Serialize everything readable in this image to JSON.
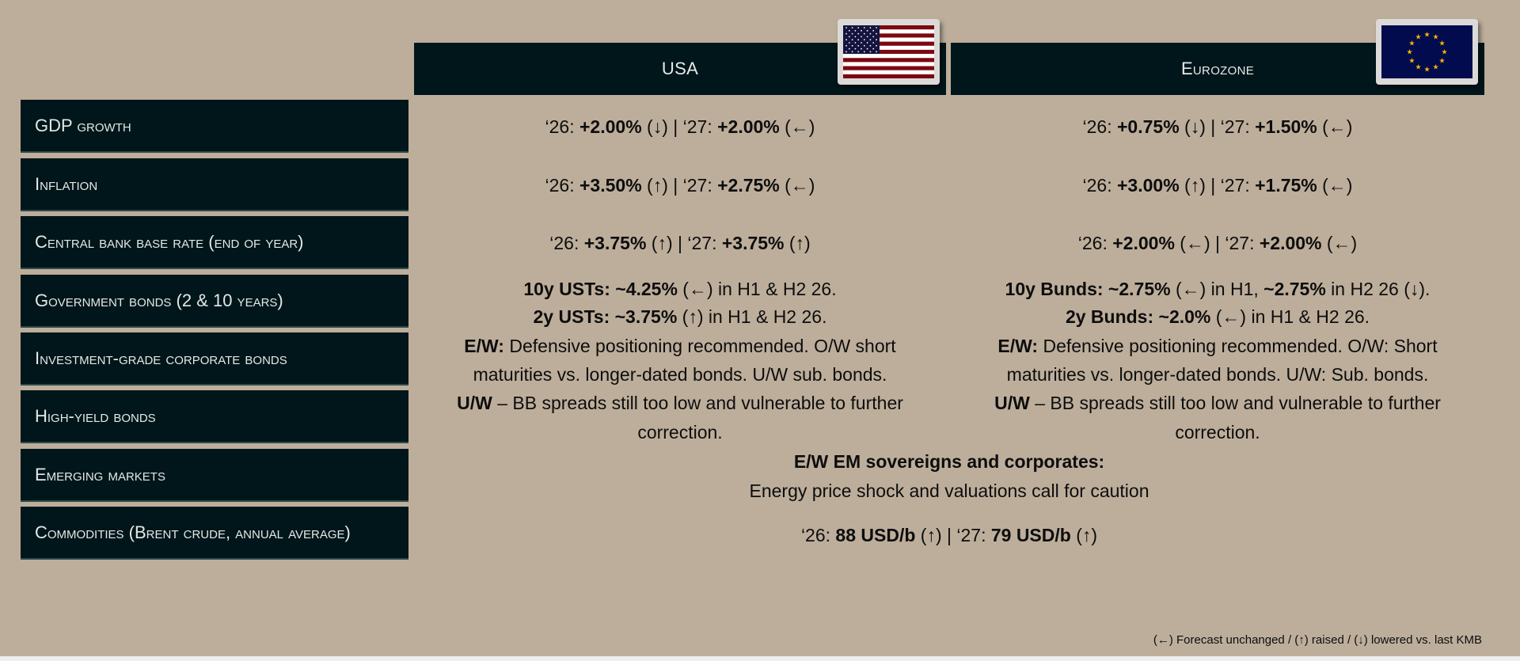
{
  "header": {
    "usa": "USA",
    "eurozone": "Eurozone"
  },
  "flags": {
    "usa": "us-flag-icon",
    "eurozone": "eu-flag-icon"
  },
  "colors": {
    "background": "#bdae9b",
    "panel": "#01161a",
    "panel_text": "#e2e9e7"
  },
  "rows": [
    {
      "label": "GDP growth"
    },
    {
      "label": "Inflation"
    },
    {
      "label": "Central bank base rate (end of year)"
    },
    {
      "label": "Government bonds (2 & 10 years)"
    },
    {
      "label": "Investment-grade corporate bonds"
    },
    {
      "label": "High-yield bonds"
    },
    {
      "label": "Emerging markets"
    },
    {
      "label": "Commodities (Brent crude, annual average)"
    }
  ],
  "usa": [
    [
      {
        "t": "‘26: "
      },
      {
        "t": "+2.00%",
        "b": 1
      },
      {
        "t": " (↓) | ‘27: "
      },
      {
        "t": "+2.00%",
        "b": 1
      },
      {
        "t": " (←)"
      }
    ],
    [
      {
        "t": "‘26: "
      },
      {
        "t": "+3.50%",
        "b": 1
      },
      {
        "t": " (↑) | ‘27: "
      },
      {
        "t": "+2.75%",
        "b": 1
      },
      {
        "t": " (←)"
      }
    ],
    [
      {
        "t": "‘26: "
      },
      {
        "t": "+3.75%",
        "b": 1
      },
      {
        "t": " (↑) | ‘27: "
      },
      {
        "t": "+3.75%",
        "b": 1
      },
      {
        "t": " (↑)"
      }
    ],
    [
      {
        "t": "10y USTs: ~4.25%",
        "b": 1
      },
      {
        "t": " (←) in H1 & H2 26."
      }
    ],
    [
      {
        "t": "2y USTs: ~3.75%",
        "b": 1
      },
      {
        "t": " (↑) in H1 & H2 26."
      }
    ],
    [
      {
        "t": "E/W:",
        "b": 1
      },
      {
        "t": " Defensive positioning recommended. O/W short"
      }
    ],
    [
      {
        "t": "maturities vs. longer-dated bonds. U/W sub. bonds."
      }
    ],
    [
      {
        "t": "U/W",
        "b": 1
      },
      {
        "t": " – BB spreads still too low and vulnerable to further"
      }
    ],
    [
      {
        "t": "correction."
      }
    ]
  ],
  "eurozone": [
    [
      {
        "t": "‘26: "
      },
      {
        "t": "+0.75%",
        "b": 1
      },
      {
        "t": " (↓) | ‘27: "
      },
      {
        "t": "+1.50%",
        "b": 1
      },
      {
        "t": " (←)"
      }
    ],
    [
      {
        "t": "‘26: "
      },
      {
        "t": "+3.00%",
        "b": 1
      },
      {
        "t": " (↑) | ‘27: "
      },
      {
        "t": "+1.75%",
        "b": 1
      },
      {
        "t": " (←)"
      }
    ],
    [
      {
        "t": "‘26: "
      },
      {
        "t": "+2.00%",
        "b": 1
      },
      {
        "t": " (←) | ‘27: "
      },
      {
        "t": "+2.00%",
        "b": 1
      },
      {
        "t": " (←)"
      }
    ],
    [
      {
        "t": "10y Bunds: ~2.75%",
        "b": 1
      },
      {
        "t": " (←) in H1, "
      },
      {
        "t": "~2.75%",
        "b": 1
      },
      {
        "t": " in H2 26 (↓)."
      }
    ],
    [
      {
        "t": "2y Bunds: ~2.0%",
        "b": 1
      },
      {
        "t": " (←) in H1 & H2 26."
      }
    ],
    [
      {
        "t": "E/W:",
        "b": 1
      },
      {
        "t": " Defensive positioning recommended. O/W: Short"
      }
    ],
    [
      {
        "t": "maturities vs. longer-dated bonds. U/W: Sub. bonds."
      }
    ],
    [
      {
        "t": "U/W",
        "b": 1
      },
      {
        "t": " – BB spreads still too low and vulnerable to further"
      }
    ],
    [
      {
        "t": "correction."
      }
    ]
  ],
  "shared": [
    [
      {
        "t": "E/W EM sovereigns and corporates:",
        "b": 1
      }
    ],
    [
      {
        "t": "Energy price shock and valuations call for caution"
      }
    ],
    [
      {
        "t": "‘26: "
      },
      {
        "t": "88 USD/b",
        "b": 1
      },
      {
        "t": " (↑) | ‘27: "
      },
      {
        "t": "79 USD/b",
        "b": 1
      },
      {
        "t": " (↑)"
      }
    ]
  ],
  "footer": "(←) Forecast unchanged / (↑) raised / (↓) lowered vs. last KMB"
}
